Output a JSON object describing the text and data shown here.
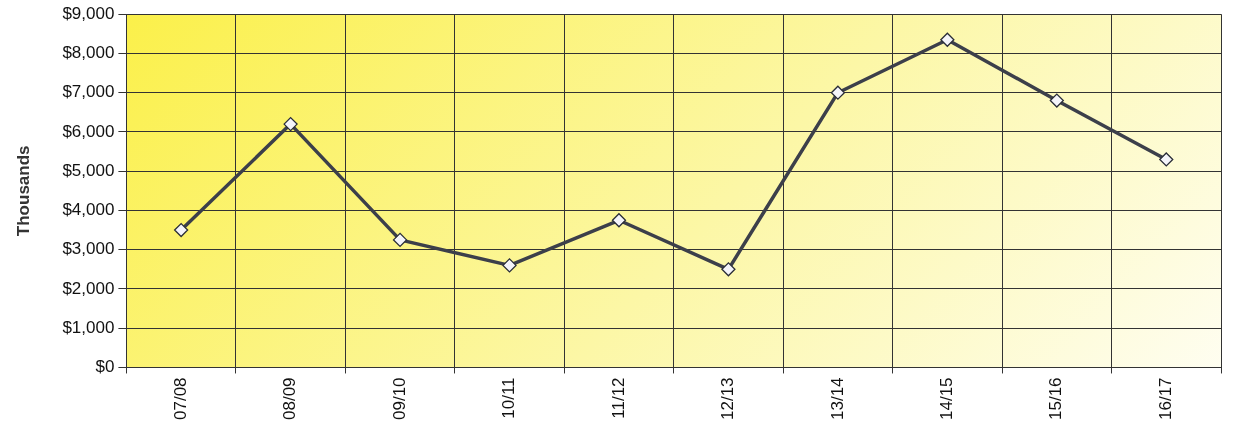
{
  "chart_data": {
    "type": "line",
    "ylabel": "Thousands",
    "categories": [
      "07/08",
      "08/09",
      "09/10",
      "10/11",
      "11/12",
      "12/13",
      "13/14",
      "14/15",
      "15/16",
      "16/17"
    ],
    "series": [
      {
        "color": "#3c3f4a",
        "values": [
          3500,
          6200,
          3250,
          2600,
          3750,
          2500,
          7000,
          8350,
          6800,
          5300
        ]
      }
    ],
    "ylim": [
      0,
      9000
    ],
    "yticks": [
      {
        "value": 0,
        "label": "$0"
      },
      {
        "value": 1000,
        "label": "$1,000"
      },
      {
        "value": 2000,
        "label": "$2,000"
      },
      {
        "value": 3000,
        "label": "$3,000"
      },
      {
        "value": 4000,
        "label": "$4,000"
      },
      {
        "value": 5000,
        "label": "$5,000"
      },
      {
        "value": 6000,
        "label": "$6,000"
      },
      {
        "value": 7000,
        "label": "$7,000"
      },
      {
        "value": 8000,
        "label": "$8,000"
      },
      {
        "value": 9000,
        "label": "$9,000"
      }
    ],
    "grid": true,
    "legend": false,
    "marker": "diamond",
    "line_style": "solid"
  }
}
